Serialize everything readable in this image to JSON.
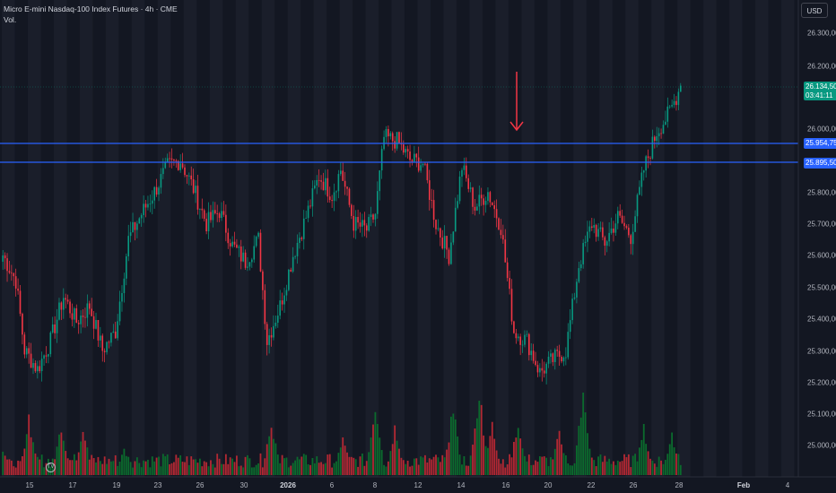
{
  "legend": {
    "symbol_line": "Micro E-mini Nasdaq-100 Index Futures · 4h · CME",
    "volume_label": "Vol."
  },
  "currency": "USD",
  "price_axis": {
    "labels": [
      "26.300,00",
      "26.200,00",
      "26.000,00",
      "25.800,00",
      "25.700,00",
      "25.600,00",
      "25.500,00",
      "25.400,00",
      "25.300,00",
      "25.200,00",
      "25.100,00",
      "25.000,00"
    ]
  },
  "time_axis": {
    "labels": [
      "15",
      "17",
      "19",
      "23",
      "26",
      "30",
      "2026",
      "6",
      "8",
      "12",
      "14",
      "16",
      "20",
      "22",
      "26",
      "28",
      "Feb",
      "4"
    ]
  },
  "tags": {
    "current_price": "26.134,50",
    "countdown": "03:41:11",
    "level_1": "25.954,75",
    "level_2": "25.895,50"
  },
  "colors": {
    "up": "#089981",
    "down": "#f23645",
    "vol_up": "#0b6b2d",
    "vol_down": "#b22833",
    "level_line": "#2962ff",
    "arrow": "#f23645",
    "background": "#131722"
  },
  "logo": {
    "text": "TV"
  },
  "chart_data": {
    "type": "candlestick",
    "timeframe": "4h",
    "ylim": [
      24950,
      26350
    ],
    "horizontal_levels": [
      25954.75,
      25895.5
    ],
    "last_price": 26134.5,
    "anchors": [
      [
        0,
        25600
      ],
      [
        6,
        25520
      ],
      [
        10,
        25300
      ],
      [
        16,
        25240
      ],
      [
        22,
        25330
      ],
      [
        28,
        25470
      ],
      [
        34,
        25390
      ],
      [
        40,
        25440
      ],
      [
        46,
        25300
      ],
      [
        52,
        25360
      ],
      [
        58,
        25650
      ],
      [
        64,
        25730
      ],
      [
        70,
        25800
      ],
      [
        76,
        25880
      ],
      [
        82,
        25900
      ],
      [
        88,
        25810
      ],
      [
        94,
        25700
      ],
      [
        100,
        25740
      ],
      [
        106,
        25630
      ],
      [
        112,
        25580
      ],
      [
        118,
        25650
      ],
      [
        122,
        25330
      ],
      [
        128,
        25440
      ],
      [
        134,
        25600
      ],
      [
        140,
        25720
      ],
      [
        146,
        25850
      ],
      [
        152,
        25790
      ],
      [
        156,
        25870
      ],
      [
        162,
        25700
      ],
      [
        168,
        25680
      ],
      [
        172,
        25730
      ],
      [
        176,
        25970
      ],
      [
        182,
        25960
      ],
      [
        188,
        25900
      ],
      [
        194,
        25890
      ],
      [
        200,
        25700
      ],
      [
        206,
        25600
      ],
      [
        212,
        25880
      ],
      [
        218,
        25750
      ],
      [
        224,
        25800
      ],
      [
        230,
        25690
      ],
      [
        236,
        25360
      ],
      [
        242,
        25330
      ],
      [
        248,
        25230
      ],
      [
        254,
        25270
      ],
      [
        260,
        25300
      ],
      [
        266,
        25570
      ],
      [
        272,
        25700
      ],
      [
        278,
        25640
      ],
      [
        284,
        25720
      ],
      [
        290,
        25660
      ],
      [
        296,
        25870
      ],
      [
        302,
        25990
      ],
      [
        308,
        26050
      ],
      [
        313,
        26134
      ]
    ],
    "volume_peaks": [
      {
        "bar": 0,
        "value": 0.3
      },
      {
        "bar": 12,
        "value": 0.65
      },
      {
        "bar": 27,
        "value": 0.6
      },
      {
        "bar": 37,
        "value": 0.55
      },
      {
        "bar": 56,
        "value": 0.3
      },
      {
        "bar": 124,
        "value": 0.65
      },
      {
        "bar": 157,
        "value": 0.45
      },
      {
        "bar": 172,
        "value": 0.85
      },
      {
        "bar": 181,
        "value": 0.55
      },
      {
        "bar": 208,
        "value": 0.8
      },
      {
        "bar": 220,
        "value": 1.0
      },
      {
        "bar": 226,
        "value": 0.6
      },
      {
        "bar": 238,
        "value": 0.65
      },
      {
        "bar": 257,
        "value": 0.5
      },
      {
        "bar": 268,
        "value": 1.0
      },
      {
        "bar": 296,
        "value": 0.55
      },
      {
        "bar": 309,
        "value": 0.5
      }
    ]
  }
}
